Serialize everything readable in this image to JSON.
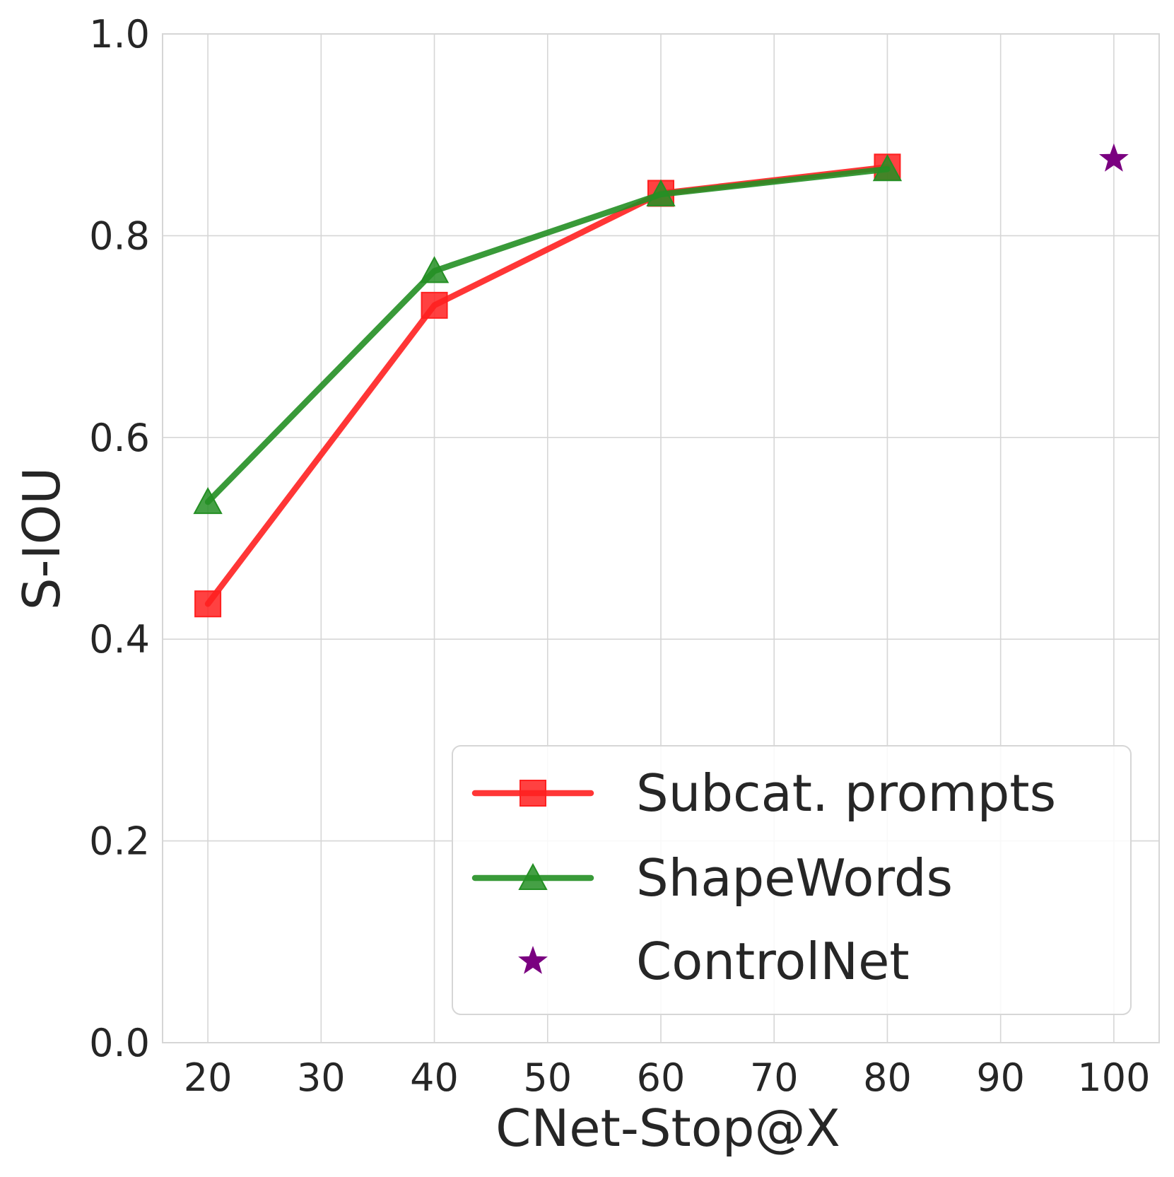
{
  "chart_data": {
    "type": "line",
    "xlabel": "CNet-Stop@X",
    "ylabel": "S-IOU",
    "xlim": [
      16,
      104
    ],
    "ylim": [
      0.0,
      1.0
    ],
    "xticks": [
      20,
      30,
      40,
      50,
      60,
      70,
      80,
      90,
      100
    ],
    "xtick_labels": [
      "20",
      "30",
      "40",
      "50",
      "60",
      "70",
      "80",
      "90",
      "100"
    ],
    "yticks": [
      0.0,
      0.2,
      0.4,
      0.6,
      0.8,
      1.0
    ],
    "ytick_labels": [
      "0.0",
      "0.2",
      "0.4",
      "0.6",
      "0.8",
      "1.0"
    ],
    "grid": true,
    "legend_position": "lower-right",
    "series": [
      {
        "name": "Subcat. prompts",
        "marker": "square",
        "color": "#ff2020",
        "x": [
          20,
          40,
          60,
          80
        ],
        "y": [
          0.435,
          0.731,
          0.842,
          0.868
        ]
      },
      {
        "name": "ShapeWords",
        "marker": "triangle",
        "color": "#248f24",
        "x": [
          20,
          40,
          60,
          80
        ],
        "y": [
          0.536,
          0.765,
          0.841,
          0.866
        ]
      },
      {
        "name": "ControlNet",
        "marker": "star",
        "color": "#7a0080",
        "x": [
          100
        ],
        "y": [
          0.876
        ]
      }
    ]
  }
}
